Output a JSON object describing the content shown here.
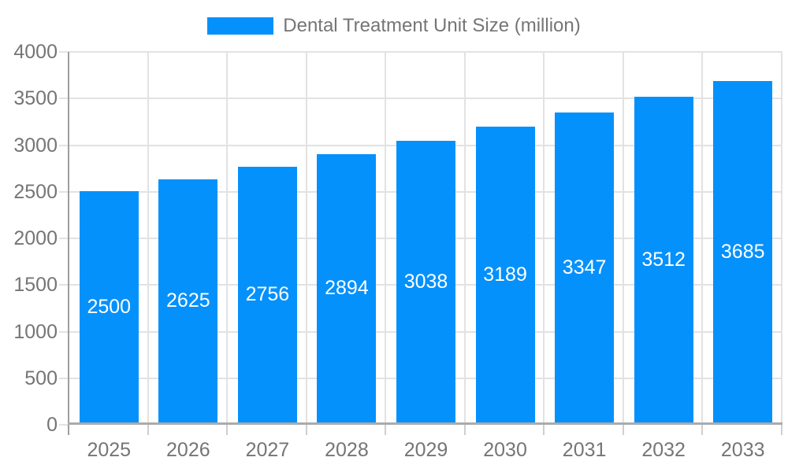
{
  "legend": {
    "label": "Dental Treatment Unit Size (million)"
  },
  "chart_data": {
    "type": "bar",
    "title": "",
    "series_name": "Dental Treatment Unit Size (million)",
    "categories": [
      "2025",
      "2026",
      "2027",
      "2028",
      "2029",
      "2030",
      "2031",
      "2032",
      "2033"
    ],
    "values": [
      2500,
      2625,
      2756,
      2894,
      3038,
      3189,
      3347,
      3512,
      3685
    ],
    "xlabel": "",
    "ylabel": "",
    "ylim": [
      0,
      4000
    ],
    "ytick_step": 500,
    "yticks": [
      0,
      500,
      1000,
      1500,
      2000,
      2500,
      3000,
      3500,
      4000
    ],
    "bar_value_labels_visible": true,
    "grid": true,
    "legend_position": "top-center"
  },
  "colors": {
    "bar": "#0591FB",
    "bar_label_text": "#FFFFFF",
    "axis_text": "#757575",
    "legend_text": "#757575",
    "gridline": "#E2E2E2",
    "x_tick": "#CFCFCF",
    "y_axis_line": "#9E9E9E",
    "x_axis_line": "#ABABAB",
    "background": "#FFFFFF"
  }
}
